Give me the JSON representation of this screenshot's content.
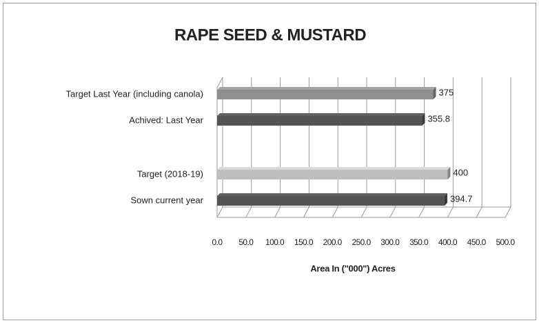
{
  "chart_data": {
    "type": "bar",
    "orientation": "horizontal",
    "title": "RAPE SEED & MUSTARD",
    "categories": [
      "Target  Last Year (including canola)",
      "Achived: Last Year",
      null,
      "Target (2018-19)",
      "Sown current year"
    ],
    "values": [
      375,
      355.8,
      null,
      400,
      394.7
    ],
    "colors": [
      "#8f8f8f",
      "#545454",
      "#8f8f8f",
      "#bdbdbd",
      "#545454"
    ],
    "x_label": "Area In (\"000\") Acres",
    "xlim": [
      0,
      500
    ],
    "xticks": [
      {
        "value": 0,
        "label": "0.0"
      },
      {
        "value": 50,
        "label": "50.0"
      },
      {
        "value": 100,
        "label": "100.0"
      },
      {
        "value": 150,
        "label": "150.0"
      },
      {
        "value": 200,
        "label": "200.0"
      },
      {
        "value": 250,
        "label": "250.0"
      },
      {
        "value": 300,
        "label": "300.0"
      },
      {
        "value": 350,
        "label": "350.0"
      },
      {
        "value": 400,
        "label": "400.0"
      },
      {
        "value": 450,
        "label": "450.0"
      },
      {
        "value": 500,
        "label": "500.0"
      }
    ],
    "grid": true
  }
}
